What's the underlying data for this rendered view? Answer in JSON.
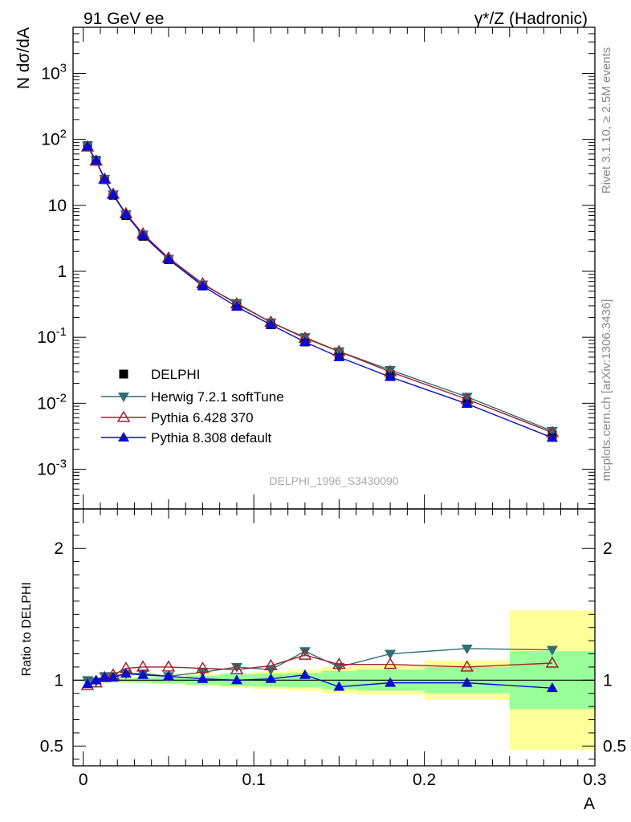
{
  "header": {
    "left": "91 GeV ee",
    "right": "γ*/Z (Hadronic)"
  },
  "side_labels": {
    "rivet": "Rivet 3.1.10, ≥ 2.5M events",
    "mcplots": "mcplots.cern.ch [arXiv:1306.3436]"
  },
  "analysis_id": "DELPHI_1996_S3430090",
  "colors": {
    "herwig": "#2f6f74",
    "pythia6": "#a0212c",
    "pythia8": "#0a0ad2",
    "band_inner": "#99ff99",
    "band_outer": "#ffff99"
  },
  "chart_data": [
    {
      "type": "line",
      "panel": "main",
      "ylabel": "N dσ/dA",
      "y_scale": "log",
      "ylim": [
        0.00025,
        5000
      ],
      "xlim": [
        -0.006,
        0.3
      ],
      "y_tick_labels": [
        "10^3",
        "10^2",
        "10",
        "1",
        "10^-1",
        "10^-2",
        "10^-3"
      ],
      "x": [
        0.0025,
        0.0075,
        0.0125,
        0.0175,
        0.025,
        0.035,
        0.05,
        0.07,
        0.09,
        0.11,
        0.13,
        0.15,
        0.18,
        0.225,
        0.275
      ],
      "series": [
        {
          "name": "DELPHI",
          "marker": "square",
          "values": [
            80,
            48,
            24.5,
            14.2,
            7.0,
            3.4,
            1.5,
            0.6,
            0.3,
            0.155,
            0.085,
            0.055,
            0.027,
            0.0105,
            0.0033
          ]
        },
        {
          "name": "Herwig 7.2.1 softTune",
          "marker": "triangle-down",
          "values": [
            80,
            47.5,
            25.2,
            14.6,
            7.3,
            3.6,
            1.55,
            0.63,
            0.33,
            0.168,
            0.1,
            0.061,
            0.032,
            0.0125,
            0.0038
          ]
        },
        {
          "name": "Pythia 6.428 370",
          "marker": "triangle-up-open",
          "values": [
            77,
            47.0,
            25.0,
            14.8,
            7.5,
            3.7,
            1.6,
            0.65,
            0.32,
            0.17,
            0.097,
            0.061,
            0.03,
            0.0115,
            0.0036
          ]
        },
        {
          "name": "Pythia 8.308 default",
          "marker": "triangle-up",
          "values": [
            78,
            48.0,
            25.0,
            14.5,
            7.3,
            3.5,
            1.52,
            0.6,
            0.29,
            0.155,
            0.085,
            0.05,
            0.025,
            0.0098,
            0.003
          ]
        }
      ]
    },
    {
      "type": "line",
      "panel": "ratio",
      "ylabel": "Ratio to DELPHI",
      "xlabel": "A",
      "ylim": [
        0.35,
        2.3
      ],
      "xlim": [
        -0.006,
        0.3
      ],
      "y_tick_labels": [
        "0.5",
        "1",
        "2"
      ],
      "x_tick_labels": [
        "0",
        "0.1",
        "0.2",
        "0.3"
      ],
      "bins": [
        {
          "lo": 0.0,
          "hi": 0.005,
          "inner": 0.015,
          "outer": 0.02
        },
        {
          "lo": 0.005,
          "hi": 0.01,
          "inner": 0.015,
          "outer": 0.02
        },
        {
          "lo": 0.01,
          "hi": 0.015,
          "inner": 0.015,
          "outer": 0.02
        },
        {
          "lo": 0.015,
          "hi": 0.02,
          "inner": 0.015,
          "outer": 0.02
        },
        {
          "lo": 0.02,
          "hi": 0.03,
          "inner": 0.015,
          "outer": 0.02
        },
        {
          "lo": 0.03,
          "hi": 0.04,
          "inner": 0.02,
          "outer": 0.025
        },
        {
          "lo": 0.04,
          "hi": 0.06,
          "inner": 0.025,
          "outer": 0.03
        },
        {
          "lo": 0.06,
          "hi": 0.08,
          "inner": 0.035,
          "outer": 0.045
        },
        {
          "lo": 0.08,
          "hi": 0.1,
          "inner": 0.045,
          "outer": 0.055
        },
        {
          "lo": 0.1,
          "hi": 0.12,
          "inner": 0.05,
          "outer": 0.065
        },
        {
          "lo": 0.12,
          "hi": 0.14,
          "inner": 0.055,
          "outer": 0.08
        },
        {
          "lo": 0.14,
          "hi": 0.16,
          "inner": 0.07,
          "outer": 0.1
        },
        {
          "lo": 0.16,
          "hi": 0.2,
          "inner": 0.08,
          "outer": 0.11
        },
        {
          "lo": 0.2,
          "hi": 0.25,
          "inner": 0.1,
          "outer": 0.15
        },
        {
          "lo": 0.25,
          "hi": 0.3,
          "inner": 0.22,
          "outer": 0.53
        }
      ],
      "x": [
        0.0025,
        0.0075,
        0.0125,
        0.0175,
        0.025,
        0.035,
        0.05,
        0.07,
        0.09,
        0.11,
        0.13,
        0.15,
        0.18,
        0.225,
        0.275
      ],
      "series": [
        {
          "name": "Herwig 7.2.1 softTune",
          "marker": "triangle-down",
          "values": [
            1.0,
            0.99,
            1.03,
            1.03,
            1.05,
            1.05,
            1.03,
            1.06,
            1.1,
            1.08,
            1.22,
            1.1,
            1.2,
            1.24,
            1.23
          ]
        },
        {
          "name": "Pythia 6.428 370",
          "marker": "triangle-up-open",
          "values": [
            0.96,
            0.98,
            1.02,
            1.04,
            1.09,
            1.1,
            1.1,
            1.09,
            1.08,
            1.11,
            1.19,
            1.12,
            1.12,
            1.1,
            1.13
          ]
        },
        {
          "name": "Pythia 8.308 default",
          "marker": "triangle-up",
          "values": [
            0.97,
            1.0,
            1.02,
            1.02,
            1.05,
            1.04,
            1.03,
            1.01,
            1.0,
            1.01,
            1.04,
            0.95,
            0.98,
            0.98,
            0.94
          ]
        }
      ]
    }
  ]
}
